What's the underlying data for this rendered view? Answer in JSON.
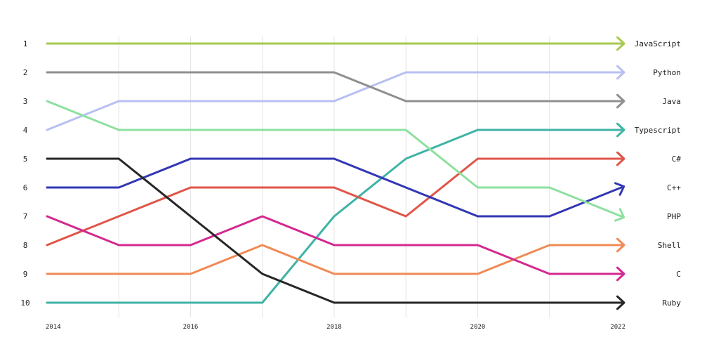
{
  "chart_data": {
    "type": "line",
    "title": "",
    "xlabel": "",
    "ylabel": "",
    "x": [
      2014,
      2015,
      2016,
      2017,
      2018,
      2019,
      2020,
      2021,
      2022
    ],
    "x_tick_labels": [
      "2014",
      "2016",
      "2018",
      "2020",
      "2022"
    ],
    "x_tick_values": [
      2014,
      2016,
      2018,
      2020,
      2022
    ],
    "y_tick_labels": [
      "1",
      "2",
      "3",
      "4",
      "5",
      "6",
      "7",
      "8",
      "9",
      "10"
    ],
    "ylim": [
      1,
      10
    ],
    "y_inverted": true,
    "grid": "vertical",
    "legend": "end-of-line labels",
    "series": [
      {
        "name": "JavaScript",
        "color": "#a6c94f",
        "values": [
          1,
          1,
          1,
          1,
          1,
          1,
          1,
          1,
          1
        ]
      },
      {
        "name": "Python",
        "color": "#b8bff2",
        "values": [
          4,
          3,
          3,
          3,
          3,
          2,
          2,
          2,
          2
        ]
      },
      {
        "name": "Java",
        "color": "#8f8f8f",
        "values": [
          2,
          2,
          2,
          2,
          2,
          3,
          3,
          3,
          3
        ]
      },
      {
        "name": "Typescript",
        "color": "#3fb3a6",
        "values": [
          10,
          10,
          10,
          10,
          7,
          5,
          4,
          4,
          4
        ]
      },
      {
        "name": "C#",
        "color": "#e05548",
        "values": [
          8,
          7,
          6,
          6,
          6,
          7,
          5,
          5,
          5
        ]
      },
      {
        "name": "C++",
        "color": "#3237b4",
        "values": [
          6,
          6,
          5,
          5,
          5,
          6,
          7,
          7,
          6
        ]
      },
      {
        "name": "PHP",
        "color": "#8de09f",
        "values": [
          3,
          4,
          4,
          4,
          4,
          4,
          6,
          6,
          7
        ]
      },
      {
        "name": "Shell",
        "color": "#f08a55",
        "values": [
          9,
          9,
          9,
          8,
          9,
          9,
          9,
          8,
          8
        ]
      },
      {
        "name": "C",
        "color": "#d4288f",
        "values": [
          7,
          8,
          8,
          7,
          8,
          8,
          8,
          9,
          9
        ]
      },
      {
        "name": "Ruby",
        "color": "#262626",
        "values": [
          5,
          5,
          7,
          9,
          10,
          10,
          10,
          10,
          10
        ]
      }
    ]
  }
}
